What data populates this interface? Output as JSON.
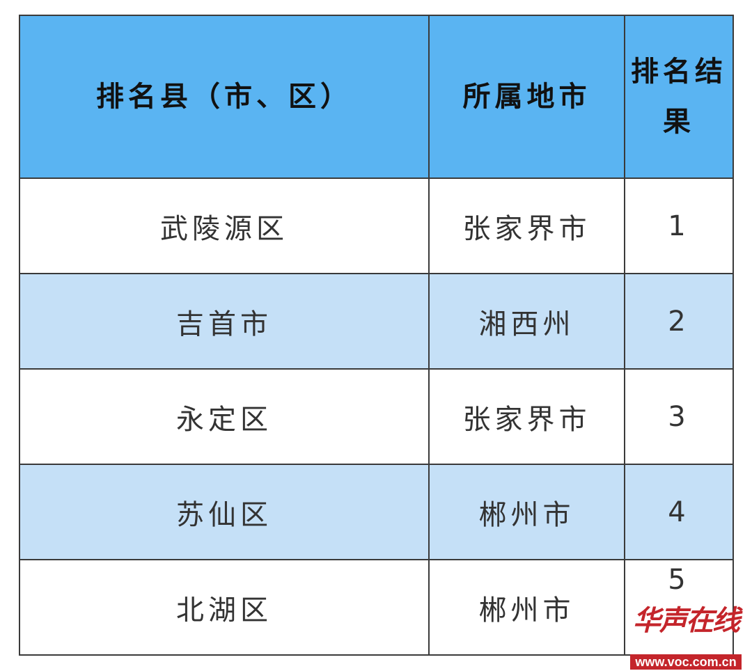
{
  "table": {
    "headers": [
      "排名县（市、区）",
      "所属地市",
      "排名结果"
    ],
    "rows": [
      [
        "武陵源区",
        "张家界市",
        "1"
      ],
      [
        "吉首市",
        "湘西州",
        "2"
      ],
      [
        "永定区",
        "张家界市",
        "3"
      ],
      [
        "苏仙区",
        "郴州市",
        "4"
      ],
      [
        "北湖区",
        "郴州市",
        "5"
      ]
    ]
  },
  "watermark": {
    "name": "华声在线",
    "url": "www.voc.com.cn"
  },
  "colors": {
    "header_bg": "#5ab4f2",
    "alt_row_bg": "#c5e0f7",
    "border": "#3a3a3a",
    "watermark": "#c4252b"
  }
}
